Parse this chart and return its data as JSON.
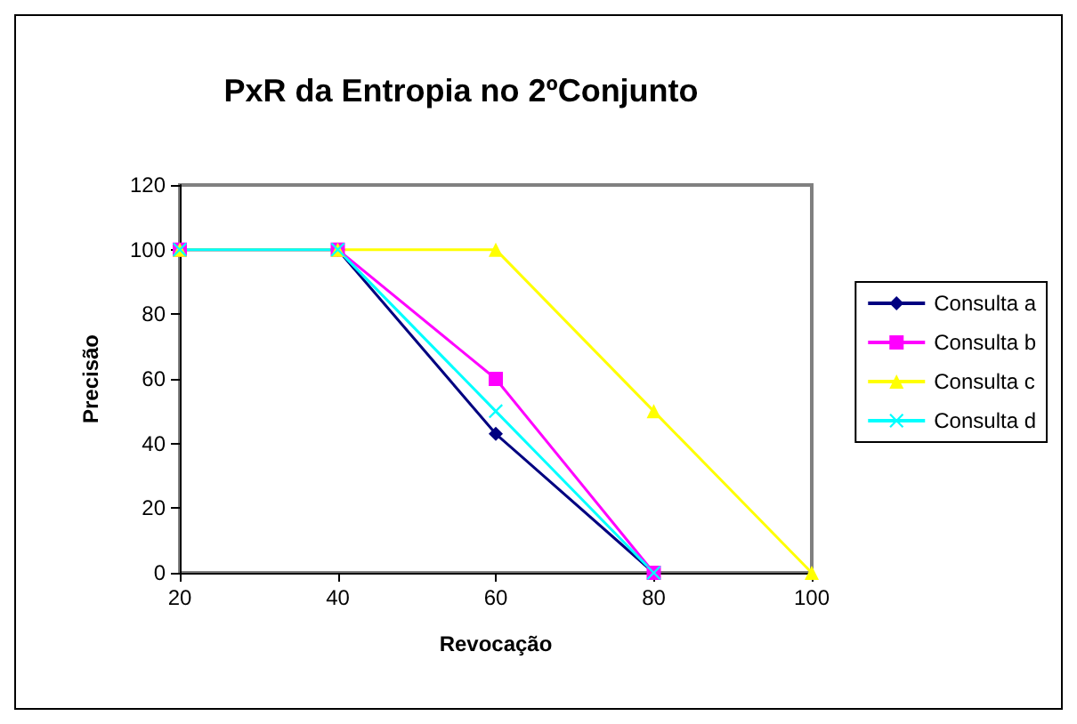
{
  "chart_data": {
    "type": "line",
    "title": "PxR da Entropia no 2ºConjunto",
    "xlabel": "Revocação",
    "ylabel": "Precisão",
    "series": [
      {
        "name": "Consulta a",
        "color": "#000080",
        "marker": "diamond",
        "x": [
          20,
          40,
          60,
          80
        ],
        "values": [
          100,
          100,
          43,
          0
        ]
      },
      {
        "name": "Consulta b",
        "color": "#ff00ff",
        "marker": "square",
        "x": [
          20,
          40,
          60,
          80
        ],
        "values": [
          100,
          100,
          60,
          0
        ]
      },
      {
        "name": "Consulta c",
        "color": "#ffff00",
        "marker": "triangle",
        "x": [
          20,
          40,
          60,
          80,
          100
        ],
        "values": [
          100,
          100,
          100,
          50,
          0
        ]
      },
      {
        "name": "Consulta d",
        "color": "#00ffff",
        "marker": "cross",
        "x": [
          20,
          40,
          60,
          80
        ],
        "values": [
          100,
          100,
          50,
          0
        ]
      }
    ],
    "xlim": [
      20,
      100
    ],
    "xticks": [
      20,
      40,
      60,
      80,
      100
    ],
    "ylim": [
      0,
      120
    ],
    "yticks": [
      0,
      20,
      40,
      60,
      80,
      100,
      120
    ],
    "grid": false,
    "legend": "right",
    "line_style": "solid"
  }
}
